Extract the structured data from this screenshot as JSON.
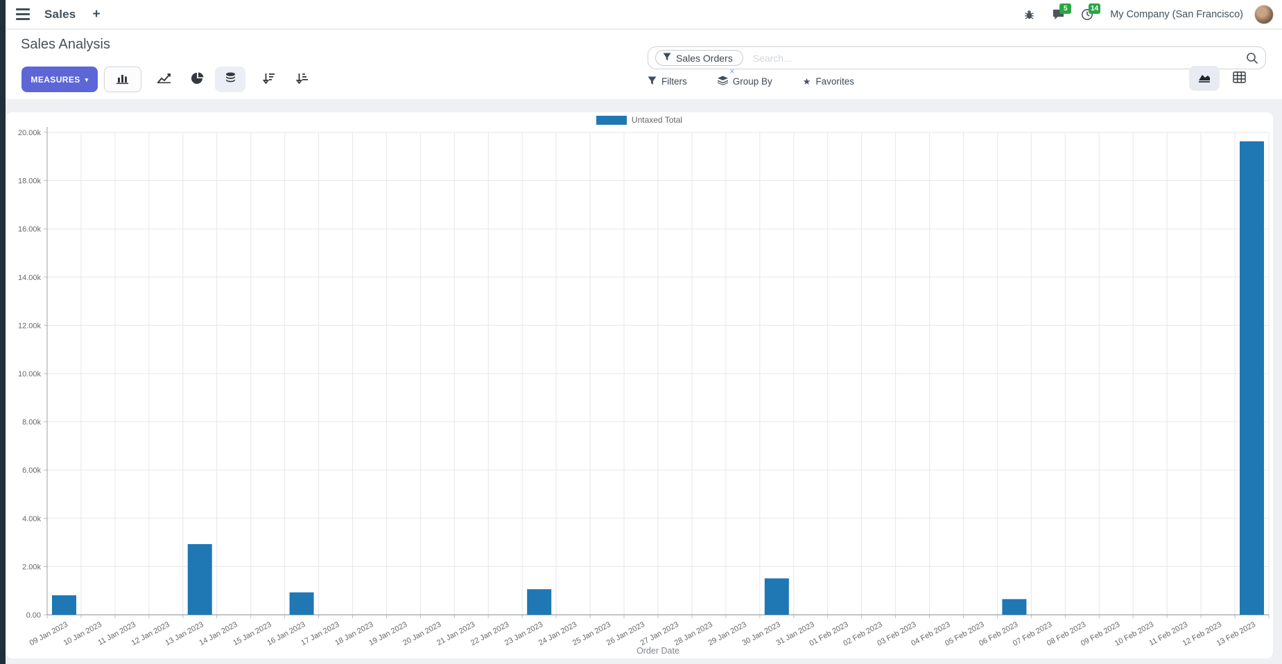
{
  "nav": {
    "app_name": "Sales",
    "plus_label": "+",
    "messages_count": "5",
    "activities_count": "14",
    "company": "My Company (San Francisco)",
    "badge_color": "#28a745"
  },
  "control_panel": {
    "title": "Sales Analysis",
    "measures_label": "MEASURES",
    "filters_label": "Filters",
    "groupby_label": "Group By",
    "favorites_label": "Favorites"
  },
  "search": {
    "facet": "Sales Orders",
    "facet_remove": "×",
    "placeholder": "Search..."
  },
  "icons": {
    "caret_down": "▾",
    "star": "★"
  },
  "colors": {
    "primary_button": "#5c66d6",
    "bar_blue": "#1f77b4",
    "badge_green": "#28a745"
  },
  "chart_data": {
    "type": "bar",
    "title": "",
    "xlabel": "Order Date",
    "ylabel": "",
    "ylim": [
      0,
      20000
    ],
    "grid": true,
    "legend_position": "top",
    "y_ticks": [
      {
        "v": 0,
        "label": "0.00"
      },
      {
        "v": 2000,
        "label": "2.00k"
      },
      {
        "v": 4000,
        "label": "4.00k"
      },
      {
        "v": 6000,
        "label": "6.00k"
      },
      {
        "v": 8000,
        "label": "8.00k"
      },
      {
        "v": 10000,
        "label": "10.00k"
      },
      {
        "v": 12000,
        "label": "12.00k"
      },
      {
        "v": 14000,
        "label": "14.00k"
      },
      {
        "v": 16000,
        "label": "16.00k"
      },
      {
        "v": 18000,
        "label": "18.00k"
      },
      {
        "v": 20000,
        "label": "20.00k"
      }
    ],
    "categories": [
      "09 Jan 2023",
      "10 Jan 2023",
      "11 Jan 2023",
      "12 Jan 2023",
      "13 Jan 2023",
      "14 Jan 2023",
      "15 Jan 2023",
      "16 Jan 2023",
      "17 Jan 2023",
      "18 Jan 2023",
      "19 Jan 2023",
      "20 Jan 2023",
      "21 Jan 2023",
      "22 Jan 2023",
      "23 Jan 2023",
      "24 Jan 2023",
      "25 Jan 2023",
      "26 Jan 2023",
      "27 Jan 2023",
      "28 Jan 2023",
      "29 Jan 2023",
      "30 Jan 2023",
      "31 Jan 2023",
      "01 Feb 2023",
      "02 Feb 2023",
      "03 Feb 2023",
      "04 Feb 2023",
      "05 Feb 2023",
      "06 Feb 2023",
      "07 Feb 2023",
      "08 Feb 2023",
      "09 Feb 2023",
      "10 Feb 2023",
      "11 Feb 2023",
      "12 Feb 2023",
      "13 Feb 2023"
    ],
    "series": [
      {
        "name": "Untaxed Total",
        "color": "#1f77b4",
        "values": [
          810,
          0,
          0,
          0,
          2930,
          0,
          0,
          930,
          0,
          0,
          0,
          0,
          0,
          0,
          1060,
          0,
          0,
          0,
          0,
          0,
          0,
          1510,
          0,
          0,
          0,
          0,
          0,
          0,
          650,
          0,
          0,
          0,
          0,
          0,
          0,
          19630
        ]
      }
    ]
  }
}
